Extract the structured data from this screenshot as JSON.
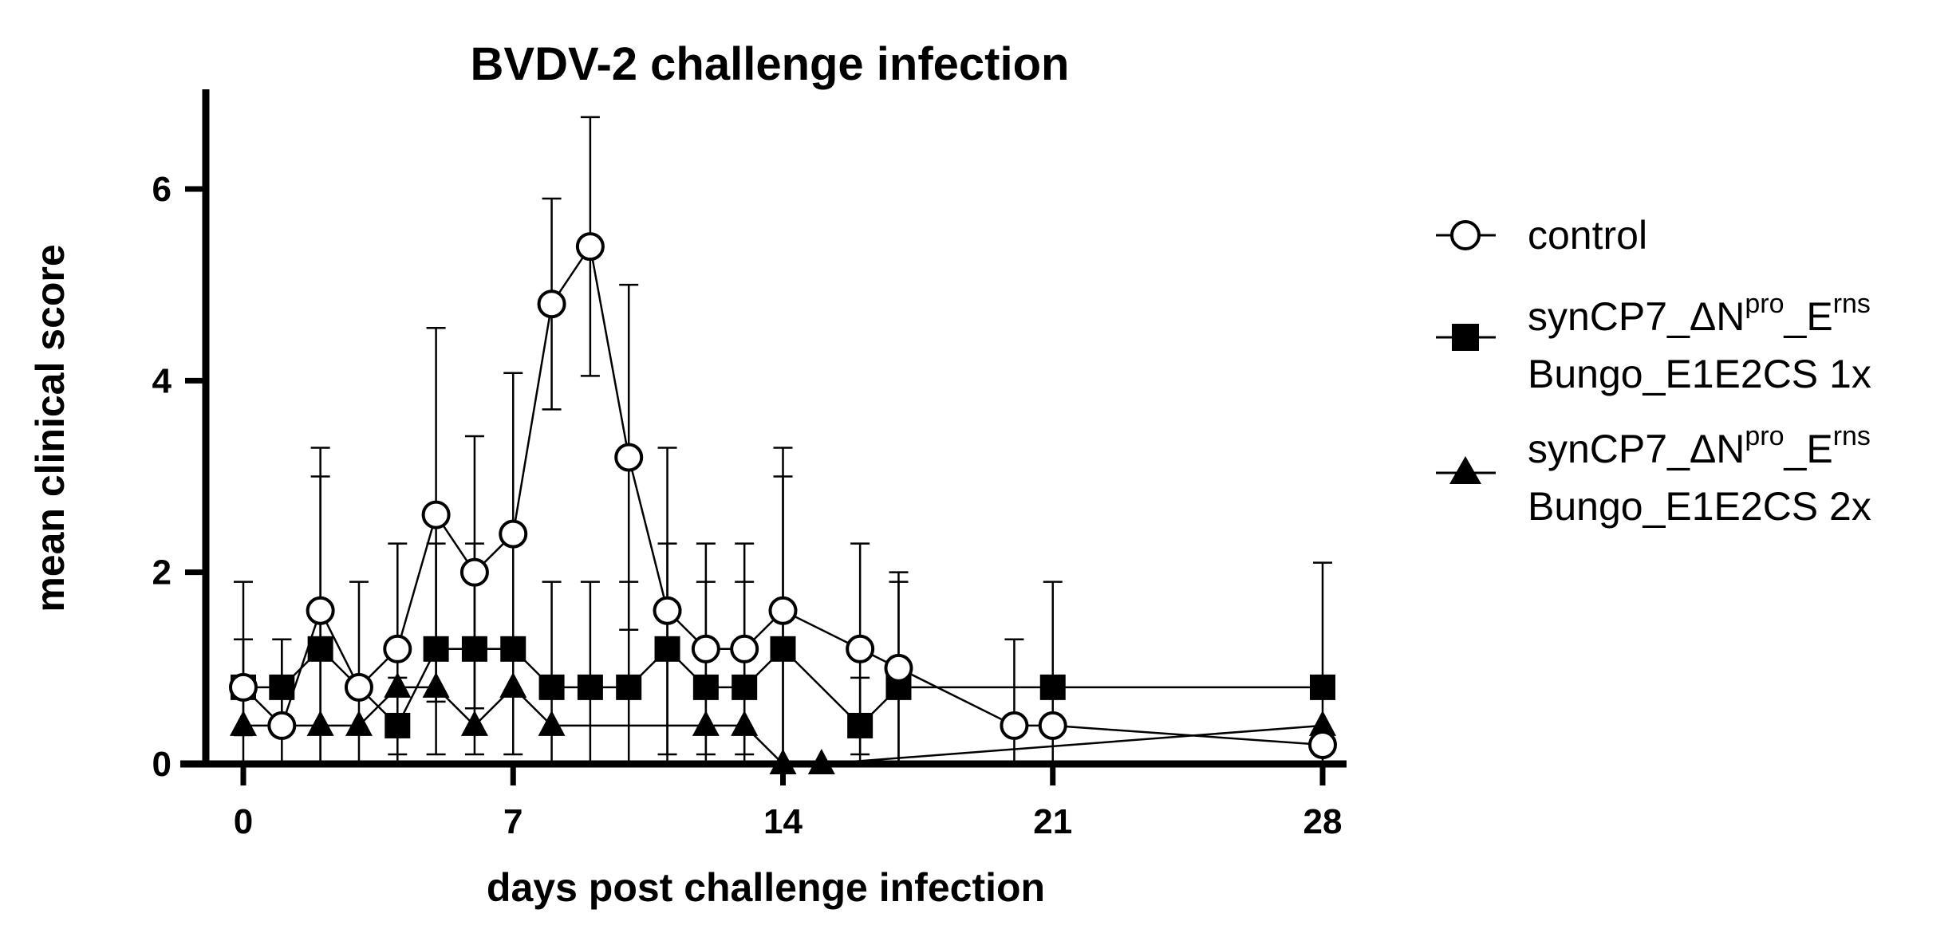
{
  "chart_data": {
    "type": "line",
    "title": "BVDV-2 challenge infection",
    "xlabel": "days post challenge infection",
    "ylabel": "mean clinical score",
    "xlim": [
      -1.5,
      28.5
    ],
    "ylim": [
      0,
      7
    ],
    "xticks": [
      0,
      7,
      14,
      21,
      28
    ],
    "yticks": [
      0,
      2,
      4,
      6
    ],
    "legend_position": "right",
    "series": [
      {
        "name": "control",
        "marker": "circle-open",
        "x": [
          0,
          1,
          2,
          3,
          4,
          5,
          6,
          7,
          8,
          9,
          10,
          11,
          12,
          13,
          14,
          16,
          17,
          20,
          21,
          28
        ],
        "y": [
          0.8,
          0.4,
          1.6,
          0.8,
          1.2,
          2.6,
          2.0,
          2.4,
          4.8,
          5.4,
          3.2,
          1.6,
          1.2,
          1.2,
          1.6,
          1.2,
          1.0,
          0.4,
          0.4,
          0.2
        ],
        "err": [
          1.1,
          0.9,
          1.7,
          1.1,
          1.1,
          1.95,
          1.42,
          1.68,
          1.1,
          1.35,
          1.8,
          1.7,
          1.1,
          1.1,
          1.7,
          1.1,
          1.0,
          0.9,
          0.5,
          0.0
        ]
      },
      {
        "name_line1": "synCP7_ΔN",
        "name_sup1": "pro",
        "name_mid": "_E",
        "name_sup2": "rns",
        "name_line2": "Bungo_E1E2CS 1x",
        "marker": "square-filled",
        "x": [
          0,
          1,
          2,
          4,
          5,
          6,
          7,
          8,
          9,
          10,
          11,
          12,
          13,
          14,
          16,
          17,
          21,
          28
        ],
        "y": [
          0.8,
          0.8,
          1.2,
          0.4,
          1.2,
          1.2,
          1.2,
          0.8,
          0.8,
          0.8,
          1.2,
          0.8,
          0.8,
          1.2,
          0.4,
          0.8,
          0.8,
          0.8
        ],
        "err": [
          0.5,
          0.5,
          1.8,
          0.5,
          1.1,
          1.1,
          1.1,
          1.1,
          1.1,
          1.1,
          1.1,
          1.1,
          1.1,
          1.8,
          0.5,
          1.1,
          1.1,
          1.3
        ]
      },
      {
        "name_line1": "synCP7_ΔN",
        "name_sup1": "pro",
        "name_mid": "_E",
        "name_sup2": "rns",
        "name_line2": "Bungo_E1E2CS 2x",
        "marker": "triangle-filled",
        "x": [
          0,
          2,
          3,
          4,
          5,
          6,
          7,
          8,
          12,
          13,
          14,
          15,
          28
        ],
        "y": [
          0.4,
          0.4,
          0.4,
          0.8,
          0.8,
          0.4,
          0.8,
          0.4,
          0.4,
          0.4,
          0.0,
          0.0,
          0.4
        ],
        "err": [
          0,
          0,
          0,
          0,
          0,
          0,
          0,
          0,
          0,
          0,
          0,
          0,
          0
        ]
      }
    ]
  }
}
